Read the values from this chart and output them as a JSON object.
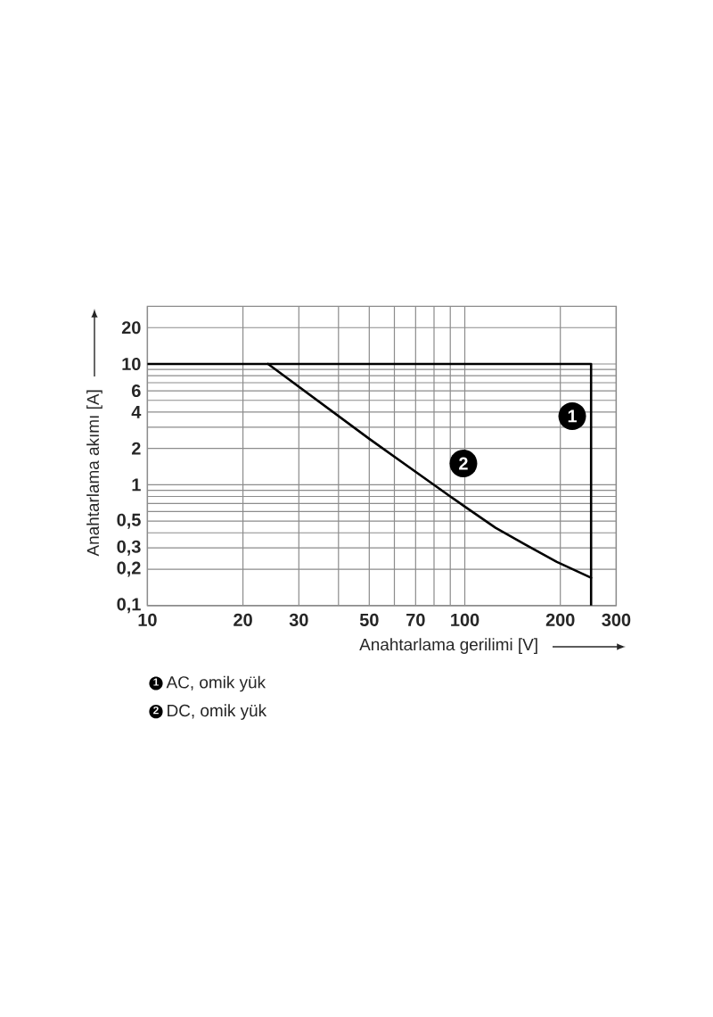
{
  "chart_data": {
    "type": "line",
    "xlabel": "Anahtarlama gerilimi [V]",
    "ylabel": "Anahtarlama akımı [A]",
    "log": "xy",
    "xlim": [
      10,
      300
    ],
    "ylim": [
      0.1,
      30
    ],
    "xticks": [
      10,
      20,
      30,
      {
        "value": 40,
        "label": null
      },
      50,
      {
        "value": 60,
        "label": null
      },
      70,
      {
        "value": 80,
        "label": null
      },
      {
        "value": 90,
        "label": null
      },
      100,
      200,
      300
    ],
    "yticks": [
      {
        "value": 0.1,
        "label": "0,1"
      },
      {
        "value": 0.2,
        "label": "0,2"
      },
      {
        "value": 0.3,
        "label": "0,3"
      },
      {
        "value": 0.4,
        "label": null
      },
      {
        "value": 0.5,
        "label": "0,5"
      },
      {
        "value": 0.6,
        "label": null
      },
      {
        "value": 0.7,
        "label": null
      },
      {
        "value": 0.8,
        "label": null
      },
      {
        "value": 0.9,
        "label": null
      },
      1,
      2,
      {
        "value": 3,
        "label": null
      },
      4,
      {
        "value": 5,
        "label": null
      },
      6,
      {
        "value": 7,
        "label": null
      },
      {
        "value": 8,
        "label": null
      },
      {
        "value": 9,
        "label": null
      },
      10,
      20
    ],
    "grid": true,
    "legend": "bottom left",
    "marker": "none",
    "series": [
      {
        "name": "AC, omik yük",
        "color": "#000000",
        "x": [
          10,
          250,
          250
        ],
        "values": [
          10,
          10,
          0.1
        ]
      },
      {
        "name": "DC, omik yük",
        "color": "#000000",
        "x": [
          24,
          50,
          90,
          100,
          125,
          155,
          195,
          250
        ],
        "values": [
          10,
          2.4,
          0.8,
          0.66,
          0.44,
          0.32,
          0.23,
          0.17
        ]
      }
    ],
    "annotations": [
      {
        "text": "1",
        "x": 218,
        "y": 3.7
      },
      {
        "text": "2",
        "x": 99,
        "y": 1.5
      }
    ]
  }
}
